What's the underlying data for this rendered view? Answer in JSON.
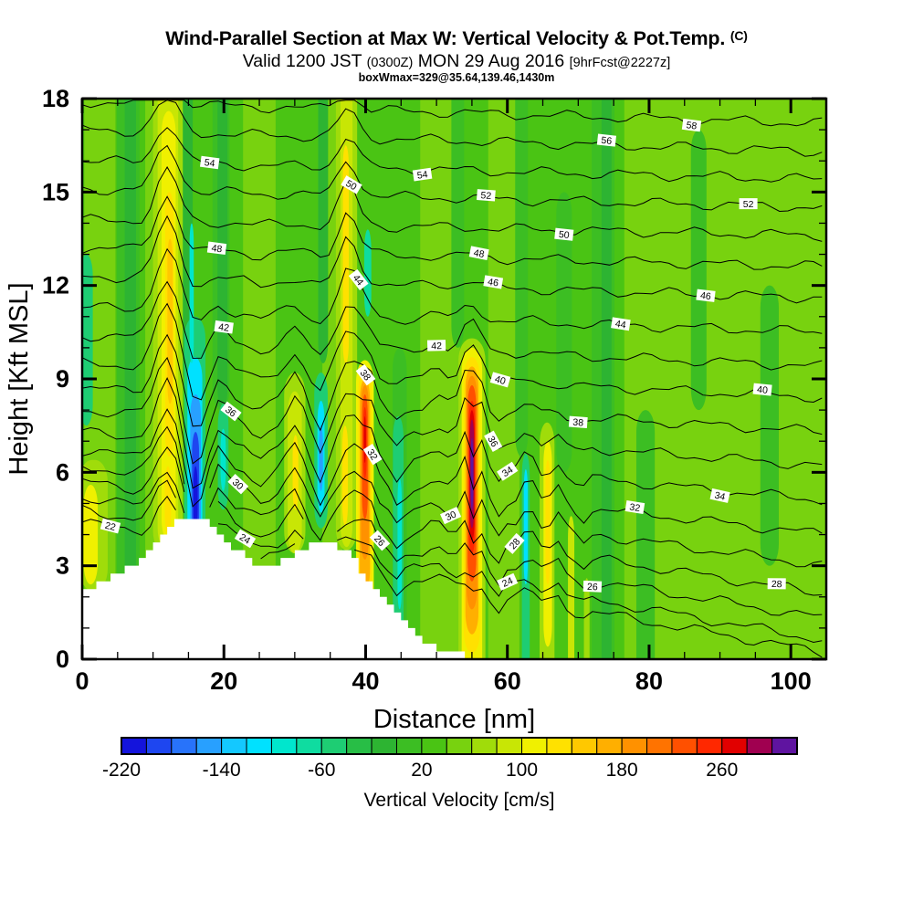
{
  "header": {
    "title_main": "Wind-Parallel Section at Max W: Vertical Velocity & Pot.Temp.",
    "title_unit": "(C)",
    "valid_prefix": "Valid 1200 JST ",
    "valid_ztime": "(0300Z)",
    "valid_date": " MON 29 Aug 2016 ",
    "valid_fcst": "[9hrFcst@2227z]",
    "subnote": "boxWmax=329@35.64,139.46,1430m"
  },
  "chart_data": {
    "type": "filled_contour_cross_section",
    "x_axis": {
      "label": "Distance [nm]",
      "min": 0,
      "max": 105,
      "major_ticks": [
        0,
        20,
        40,
        60,
        80,
        100
      ],
      "minor_step": 5
    },
    "y_axis": {
      "label": "Height [Kft MSL]",
      "min": 0,
      "max": 18,
      "major_ticks": [
        0,
        3,
        6,
        9,
        12,
        15,
        18
      ],
      "minor_step": 1
    },
    "colorbar": {
      "title": "Vertical Velocity [cm/s]",
      "min": -220,
      "max": 320,
      "step": 20,
      "tick_values": [
        -220,
        -140,
        -60,
        20,
        100,
        180,
        260
      ],
      "colors": [
        "#1414DC",
        "#1E46F0",
        "#2873FA",
        "#28A0FF",
        "#14C8FF",
        "#00E1FF",
        "#00E6CD",
        "#0FDCA0",
        "#1ECD73",
        "#28BE46",
        "#2DB432",
        "#3CBE23",
        "#4AC414",
        "#78D20F",
        "#A0DC0A",
        "#C8E605",
        "#F0F000",
        "#FFE100",
        "#FFC800",
        "#FFAF00",
        "#FF9100",
        "#FF7300",
        "#FF5000",
        "#FF2800",
        "#E10000",
        "#A00050",
        "#5F14A0"
      ]
    },
    "background_value": 20,
    "velocity_bands": [
      [
        91,
        14.5,
        0,
        18,
        45
      ],
      [
        2.5,
        2.2,
        0,
        18,
        45
      ],
      [
        25,
        2.3,
        0,
        18,
        45
      ],
      [
        50.5,
        2.8,
        0,
        18,
        45
      ],
      [
        59.5,
        2.2,
        0,
        18,
        45
      ],
      [
        35.3,
        1.4,
        0,
        18,
        45
      ],
      [
        10,
        1.1,
        0,
        18,
        45
      ],
      [
        6.5,
        1.6,
        0,
        18,
        5
      ],
      [
        19.6,
        1.2,
        8,
        18,
        5
      ],
      [
        44.8,
        1,
        0,
        10,
        5
      ],
      [
        53,
        0.9,
        10,
        18,
        5
      ],
      [
        62,
        0.9,
        6.5,
        18,
        5
      ],
      [
        68,
        1.1,
        6,
        15,
        5
      ],
      [
        73.5,
        1.6,
        0,
        18,
        5
      ],
      [
        79.5,
        1.3,
        0,
        8,
        5
      ],
      [
        87,
        1.1,
        8,
        17,
        5
      ],
      [
        97,
        1.3,
        3,
        12,
        5
      ],
      [
        6.8,
        0.8,
        0,
        18,
        -15
      ],
      [
        14.7,
        0.9,
        9,
        18,
        -15
      ],
      [
        19.8,
        0.7,
        8,
        18,
        -15
      ],
      [
        34,
        0.7,
        9.5,
        18,
        -15
      ],
      [
        74,
        0.7,
        0,
        18,
        -15
      ],
      [
        40.3,
        0.5,
        11,
        13.8,
        -75
      ],
      [
        0.6,
        0.9,
        7.5,
        13,
        -48
      ],
      [
        1.6,
        2,
        2.2,
        6.4,
        75
      ],
      [
        1.2,
        1,
        2.4,
        5.6,
        100
      ],
      [
        12.1,
        2.1,
        3.4,
        18,
        62
      ],
      [
        12.1,
        1.45,
        3.5,
        18,
        88
      ],
      [
        12.2,
        1,
        3.8,
        17.6,
        102
      ],
      [
        12.3,
        0.6,
        6.5,
        15,
        125
      ],
      [
        12.4,
        0.38,
        8.2,
        13.5,
        142
      ],
      [
        12.1,
        0.45,
        4,
        6.2,
        125
      ],
      [
        15.9,
        1.5,
        3.6,
        11,
        -55
      ],
      [
        15.9,
        1.05,
        3.6,
        9.7,
        -105
      ],
      [
        16,
        0.75,
        3.7,
        8.5,
        -148
      ],
      [
        16,
        0.5,
        3.9,
        7.3,
        -182
      ],
      [
        16,
        0.3,
        4.1,
        6.2,
        -212
      ],
      [
        15.45,
        0.3,
        9.5,
        14,
        -88
      ],
      [
        19.9,
        0.75,
        4.8,
        8.2,
        -58
      ],
      [
        19.9,
        0.38,
        5.4,
        7.4,
        -98
      ],
      [
        30,
        1.5,
        3.4,
        9.2,
        72
      ],
      [
        30,
        1,
        3.4,
        8.6,
        96
      ],
      [
        30.1,
        0.4,
        4.8,
        7.2,
        125
      ],
      [
        33.7,
        0.95,
        4.2,
        9.2,
        -55
      ],
      [
        33.7,
        0.5,
        4.7,
        8.3,
        -105
      ],
      [
        33.7,
        0.28,
        5.4,
        7.5,
        -145
      ],
      [
        37.3,
        1.5,
        3.5,
        18,
        70
      ],
      [
        37.3,
        0.85,
        3.6,
        18,
        98
      ],
      [
        37.2,
        0.42,
        9.5,
        16.5,
        125
      ],
      [
        37.1,
        0.4,
        4.3,
        7.5,
        125
      ],
      [
        39.9,
        1.25,
        0.9,
        9.6,
        100
      ],
      [
        39.9,
        0.95,
        1.4,
        9.3,
        128
      ],
      [
        39.9,
        0.72,
        2.2,
        9,
        162
      ],
      [
        39.9,
        0.55,
        3.2,
        8.8,
        192
      ],
      [
        39.9,
        0.4,
        4.5,
        8.5,
        228
      ],
      [
        39.9,
        0.25,
        5.8,
        8.1,
        248
      ],
      [
        39.9,
        0.15,
        6.3,
        7.8,
        266
      ],
      [
        44.6,
        0.75,
        0.5,
        7.8,
        -50
      ],
      [
        44.8,
        0.3,
        1.6,
        5.8,
        -92
      ],
      [
        55,
        1.9,
        0,
        10.3,
        70
      ],
      [
        55,
        1.45,
        0,
        10,
        100
      ],
      [
        55,
        1.15,
        0.2,
        9.7,
        130
      ],
      [
        55,
        0.92,
        0.8,
        9.4,
        165
      ],
      [
        55,
        0.75,
        1.6,
        9.1,
        195
      ],
      [
        55,
        0.6,
        2.5,
        8.8,
        226
      ],
      [
        55,
        0.44,
        3.4,
        8.3,
        252
      ],
      [
        55,
        0.37,
        3.8,
        8,
        268
      ],
      [
        55,
        0.3,
        4.2,
        7.7,
        285
      ],
      [
        55,
        0.18,
        4.8,
        7.1,
        305
      ],
      [
        62.6,
        0.55,
        0,
        6.6,
        -55
      ],
      [
        62.6,
        0.28,
        2.4,
        6.1,
        -102
      ],
      [
        65.6,
        1.05,
        0,
        7.6,
        72
      ],
      [
        65.7,
        0.6,
        0.4,
        7,
        100
      ],
      [
        65.7,
        0.33,
        2.4,
        6.4,
        125
      ],
      [
        69,
        0.45,
        0,
        4.6,
        88
      ],
      [
        71.2,
        0.4,
        0,
        2.6,
        70
      ]
    ],
    "terrain_profile_kft": [
      2.25,
      2.25,
      2.5,
      2.5,
      2.75,
      2.75,
      3,
      3,
      3.25,
      3.5,
      3.75,
      4,
      4.25,
      4.5,
      4.5,
      4.5,
      4.5,
      4.5,
      4.25,
      4,
      3.75,
      3.5,
      3.5,
      3.25,
      3,
      3,
      3,
      3,
      3.25,
      3.25,
      3.5,
      3.5,
      3.75,
      3.75,
      3.75,
      3.75,
      3.5,
      3.5,
      3.25,
      2.75,
      2.5,
      2.25,
      2,
      1.75,
      1.5,
      1.25,
      1,
      0.75,
      0.5,
      0.5,
      0.25,
      0.25,
      0.25,
      0.25,
      0
    ],
    "pot_temp_contours": {
      "unit": "C",
      "levels": [
        22,
        24,
        26,
        28,
        30,
        32,
        34,
        36,
        38,
        40,
        42,
        44,
        46,
        48,
        50,
        52,
        54,
        56,
        58
      ],
      "height_left_kft": {
        "22": 4.4,
        "24": 4.8,
        "26": 5.2,
        "28": 5.7,
        "30": 6.2,
        "32": 6.7,
        "34": 7.3,
        "36": 8.0,
        "38": 8.7,
        "40": 9.5,
        "42": 10.4,
        "44": 11.3,
        "46": 12.3,
        "48": 13.2,
        "50": 14.1,
        "52": 15.1,
        "54": 16.0,
        "56": 17.0,
        "58": 17.9
      },
      "height_right_kft": {
        "22": 0.2,
        "24": 0.6,
        "26": 1.3,
        "28": 2.1,
        "30": 3.0,
        "32": 4.0,
        "34": 5.1,
        "36": 6.2,
        "38": 7.3,
        "40": 8.4,
        "42": 9.4,
        "44": 10.5,
        "46": 11.6,
        "48": 12.6,
        "50": 13.6,
        "52": 14.5,
        "54": 15.4,
        "56": 16.3,
        "58": 17.2
      },
      "wave_features": [
        [
          12,
          2.2,
          2.0,
          10,
          9
        ],
        [
          16,
          1.6,
          -1.7,
          7,
          3.5
        ],
        [
          19.5,
          1.2,
          0.7,
          7,
          4
        ],
        [
          25,
          1.6,
          -0.4,
          7,
          5
        ],
        [
          30,
          1.5,
          1.0,
          6.5,
          4
        ],
        [
          33.5,
          1.2,
          -0.9,
          6.5,
          4
        ],
        [
          37.5,
          1.8,
          1.5,
          11,
          8
        ],
        [
          40,
          1.4,
          1.5,
          6.5,
          4
        ],
        [
          40,
          0.5,
          -1.1,
          6,
          3
        ],
        [
          44.5,
          1.2,
          -0.6,
          5,
          4
        ],
        [
          50,
          1.6,
          0.4,
          6,
          5
        ],
        [
          55,
          1.8,
          1.9,
          7,
          3.5
        ],
        [
          55,
          0.55,
          -1.5,
          5.5,
          2.5
        ],
        [
          58.5,
          1.0,
          -0.7,
          4,
          3
        ],
        [
          63,
          1.2,
          0.7,
          5,
          3.5
        ],
        [
          67,
          1.0,
          0.6,
          4,
          3
        ],
        [
          70.5,
          1.0,
          -0.4,
          4,
          3
        ]
      ]
    }
  }
}
